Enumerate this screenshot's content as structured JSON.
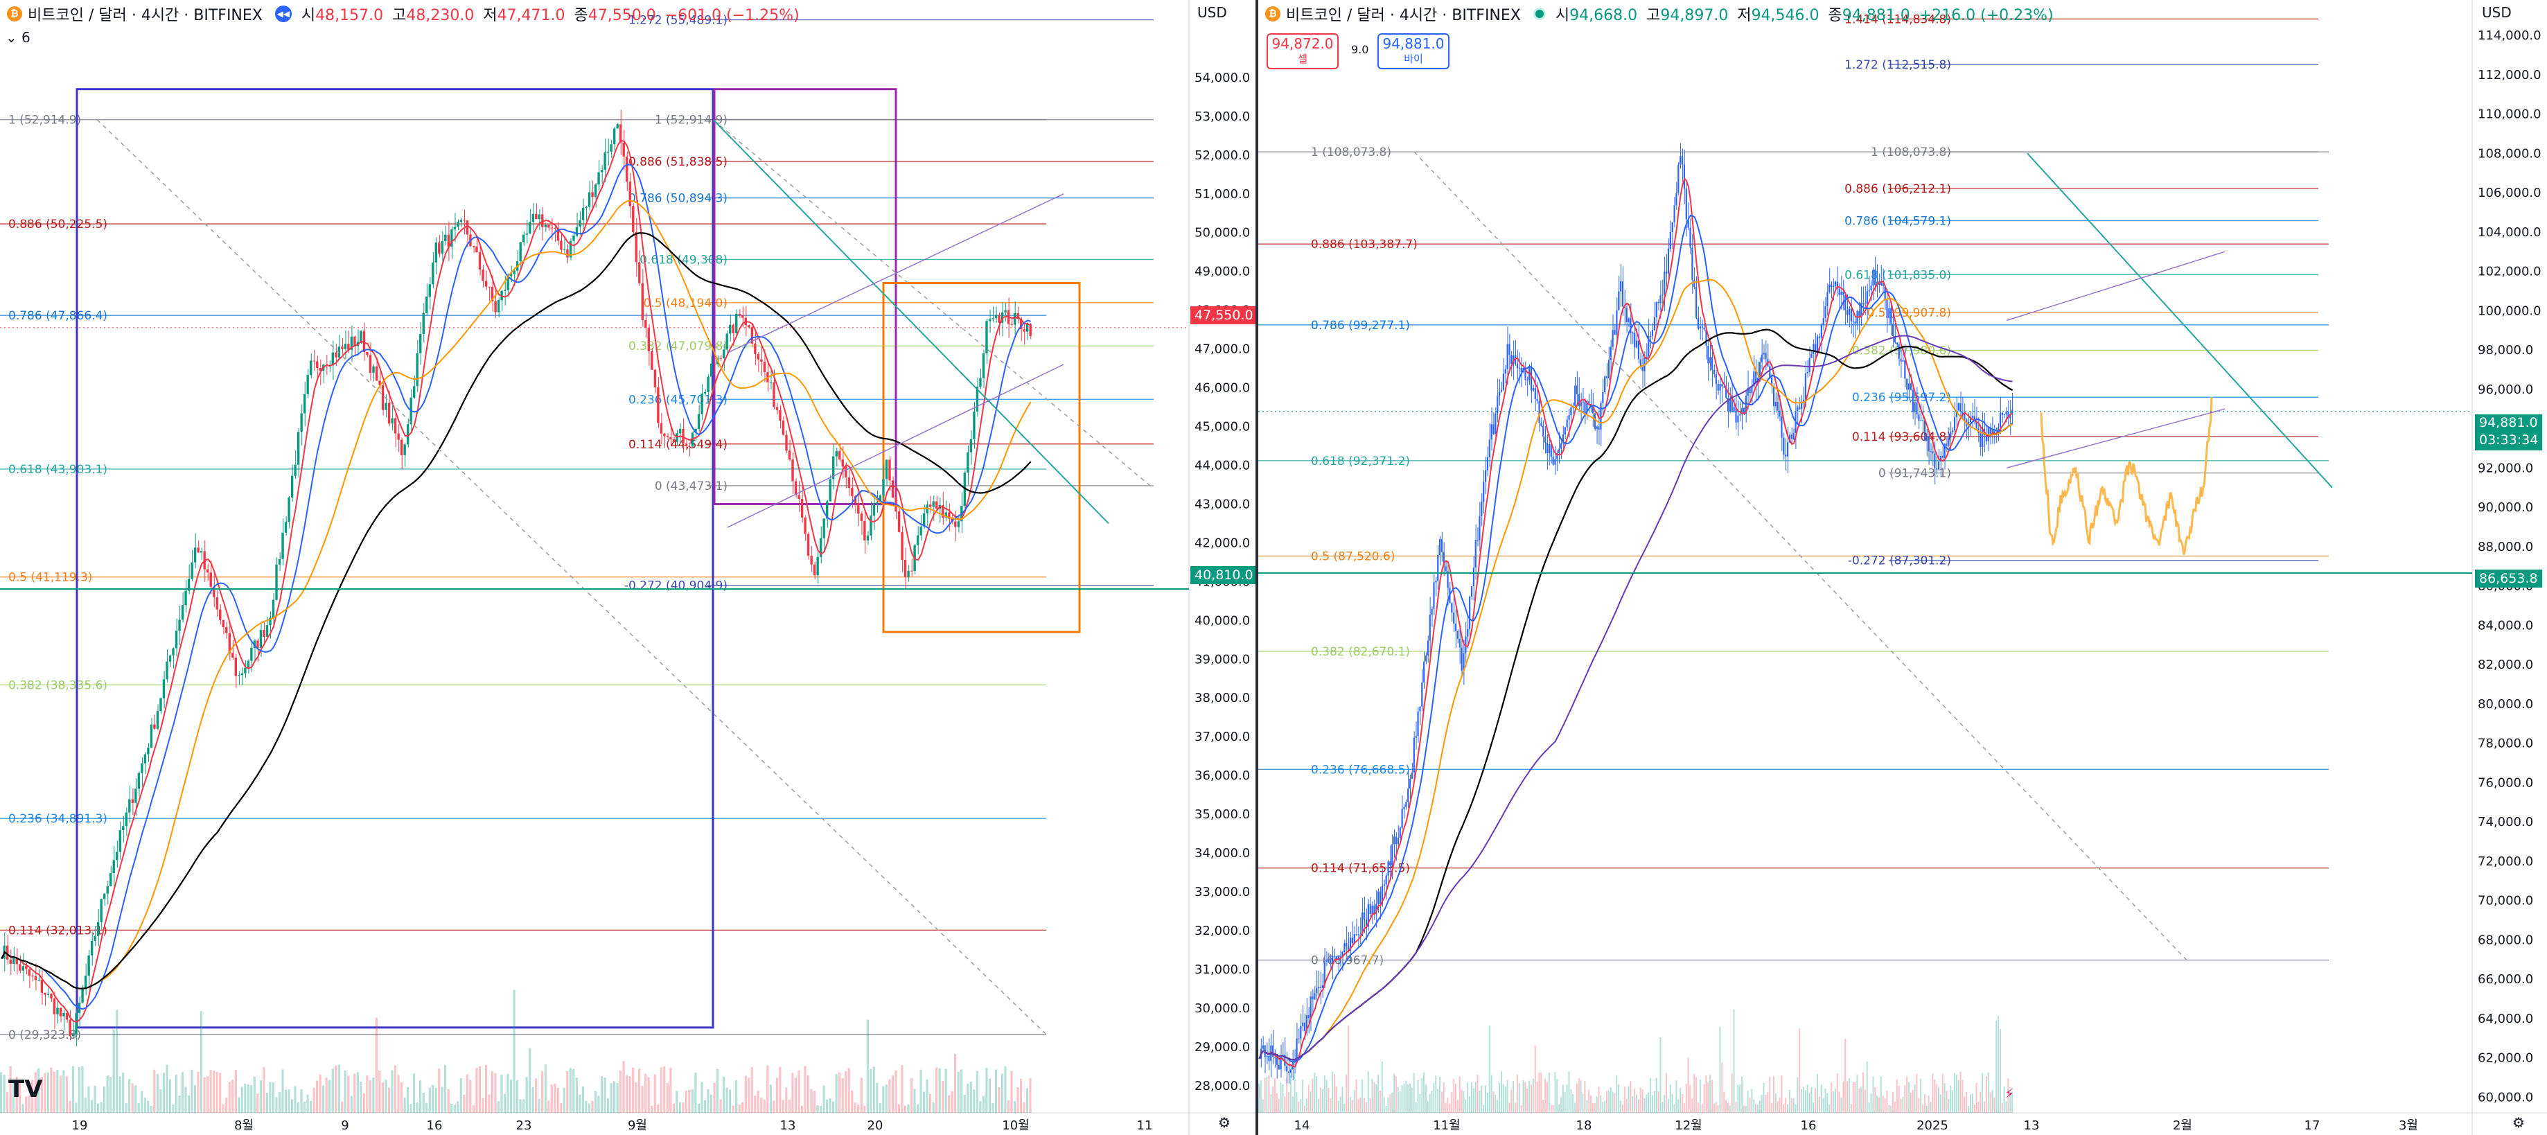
{
  "left": {
    "header": {
      "title": "비트코인 / 달러 · 4시간 · BITFINEX",
      "open_label": "시",
      "open": "48,157.0",
      "high_label": "고",
      "high": "48,230.0",
      "low_label": "저",
      "low": "47,471.0",
      "close_label": "종",
      "close": "47,550.0",
      "change": "−601.0 (−1.25%)"
    },
    "sub_indicator": "6",
    "currency": "USD",
    "last_price": "47,550.0",
    "second_tag": "40,810.0"
  },
  "right": {
    "header": {
      "title": "비트코인 / 달러 · 4시간 · BITFINEX",
      "open_label": "시",
      "open": "94,668.0",
      "high_label": "고",
      "high": "94,897.0",
      "low_label": "저",
      "low": "94,546.0",
      "close_label": "종",
      "close": "94,881.0",
      "change": "+216.0 (+0.23%)"
    },
    "sell_price": "94,872.0",
    "sell_label": "셀",
    "buy_price": "94,881.0",
    "buy_label": "바이",
    "spread": "9.0",
    "currency": "USD",
    "last_price": "94,881.0",
    "countdown": "03:33:34",
    "second_tag": "86,653.8"
  },
  "colors": {
    "up": "#089981",
    "down": "#f23645",
    "ma_red": "#f23645",
    "ma_blue": "#2962ff",
    "ma_orange": "#ff9800",
    "ma_black": "#000000",
    "ma_purple": "#673ab7"
  },
  "chart_data": [
    {
      "type": "candlestick",
      "title": "비트코인 / 달러 · 4시간 · BITFINEX",
      "ylim": [
        27300,
        56000
      ],
      "y_ticks": [
        28000,
        29000,
        30000,
        31000,
        32000,
        33000,
        34000,
        35000,
        36000,
        37000,
        38000,
        39000,
        40000,
        41000,
        42000,
        43000,
        44000,
        45000,
        46000,
        47000,
        48000,
        49000,
        50000,
        51000,
        52000,
        53000,
        54000
      ],
      "x_ticks": [
        "19",
        "8월",
        "9",
        "16",
        "23",
        "9월",
        "13",
        "20",
        "10월",
        "11"
      ],
      "key_prices": [
        {
          "t": 0,
          "p": 31500
        },
        {
          "t": 0.04,
          "p": 30500
        },
        {
          "t": 0.07,
          "p": 29323.8
        },
        {
          "t": 0.1,
          "p": 33000
        },
        {
          "t": 0.15,
          "p": 37500
        },
        {
          "t": 0.19,
          "p": 42000
        },
        {
          "t": 0.23,
          "p": 38500
        },
        {
          "t": 0.26,
          "p": 40000
        },
        {
          "t": 0.3,
          "p": 46500
        },
        {
          "t": 0.35,
          "p": 47300
        },
        {
          "t": 0.37,
          "p": 45700
        },
        {
          "t": 0.39,
          "p": 44300
        },
        {
          "t": 0.42,
          "p": 49500
        },
        {
          "t": 0.45,
          "p": 50200
        },
        {
          "t": 0.48,
          "p": 48000
        },
        {
          "t": 0.52,
          "p": 50500
        },
        {
          "t": 0.55,
          "p": 49500
        },
        {
          "t": 0.58,
          "p": 51500
        },
        {
          "t": 0.6,
          "p": 52914.9
        },
        {
          "t": 0.62,
          "p": 48500
        },
        {
          "t": 0.64,
          "p": 45000
        },
        {
          "t": 0.67,
          "p": 44600
        },
        {
          "t": 0.69,
          "p": 46500
        },
        {
          "t": 0.72,
          "p": 48000
        },
        {
          "t": 0.74,
          "p": 46500
        },
        {
          "t": 0.76,
          "p": 45000
        },
        {
          "t": 0.79,
          "p": 40904.9
        },
        {
          "t": 0.81,
          "p": 44500
        },
        {
          "t": 0.84,
          "p": 42000
        },
        {
          "t": 0.86,
          "p": 44000
        },
        {
          "t": 0.88,
          "p": 41000
        },
        {
          "t": 0.9,
          "p": 43000
        },
        {
          "t": 0.93,
          "p": 42500
        },
        {
          "t": 0.96,
          "p": 48000
        },
        {
          "t": 1,
          "p": 47550
        }
      ],
      "fib_levels": [
        {
          "label": "1 (52,914.9)",
          "price": 52914.9,
          "color": "#787b86"
        },
        {
          "label": "0.886 (50,225.5)",
          "price": 50225.5,
          "color": "#b71c1c"
        },
        {
          "label": "0.786 (47,866.4)",
          "price": 47866.4,
          "color": "#1976d2"
        },
        {
          "label": "0.618 (43,903.1)",
          "price": 43903.1,
          "color": "#26a69a"
        },
        {
          "label": "0.5 (41,119.3)",
          "price": 41119.3,
          "color": "#f57f17"
        },
        {
          "label": "0.382 (38,335.6)",
          "price": 38335.6,
          "color": "#9ccc65"
        },
        {
          "label": "0.236 (34,891.3)",
          "price": 34891.3,
          "color": "#1e88e5"
        },
        {
          "label": "0.114 (32,013.1)",
          "price": 32013.1,
          "color": "#b71c1c"
        },
        {
          "label": "0 (29,323.8)",
          "price": 29323.8,
          "color": "#787b86"
        }
      ],
      "fib_levels_2": [
        {
          "label": "1.272 (55,489.1)",
          "price": 55489.1,
          "color": "#3949ab"
        },
        {
          "label": "1 (52,914.9)",
          "price": 52914.9,
          "color": "#787b86"
        },
        {
          "label": "0.886 (51,838.5)",
          "price": 51838.5,
          "color": "#b71c1c"
        },
        {
          "label": "0.786 (50,894.3)",
          "price": 50894.3,
          "color": "#1976d2"
        },
        {
          "label": "0.618 (49,308)",
          "price": 49308,
          "color": "#26a69a"
        },
        {
          "label": "0.5 (48,194.0)",
          "price": 48194.0,
          "color": "#f57f17"
        },
        {
          "label": "0.382 (47,079.8)",
          "price": 47079.8,
          "color": "#9ccc65"
        },
        {
          "label": "0.236 (45,701.3)",
          "price": 45701.3,
          "color": "#1e88e5"
        },
        {
          "label": "0.114 (44,549.4)",
          "price": 44549.4,
          "color": "#b71c1c"
        },
        {
          "label": "0 (43,473.1)",
          "price": 43473.1,
          "color": "#787b86"
        },
        {
          "label": "-0.272 (40,904.9)",
          "price": 40904.9,
          "color": "#3949ab"
        }
      ]
    },
    {
      "type": "candlestick",
      "title": "비트코인 / 달러 · 4시간 · BITFINEX",
      "ylim": [
        59200,
        115800
      ],
      "y_ticks": [
        60000,
        62000,
        64000,
        66000,
        68000,
        70000,
        72000,
        74000,
        76000,
        78000,
        80000,
        82000,
        84000,
        86000,
        88000,
        90000,
        92000,
        94000,
        96000,
        98000,
        100000,
        102000,
        104000,
        106000,
        108000,
        110000,
        112000,
        114000
      ],
      "x_ticks": [
        "14",
        "11월",
        "18",
        "12월",
        "16",
        "2025",
        "13",
        "2월",
        "17",
        "3월"
      ],
      "key_prices": [
        {
          "t": 0,
          "p": 62500
        },
        {
          "t": 0.04,
          "p": 61500
        },
        {
          "t": 0.08,
          "p": 66000
        },
        {
          "t": 0.12,
          "p": 68000
        },
        {
          "t": 0.16,
          "p": 70000
        },
        {
          "t": 0.2,
          "p": 76000
        },
        {
          "t": 0.24,
          "p": 88000
        },
        {
          "t": 0.27,
          "p": 82000
        },
        {
          "t": 0.3,
          "p": 92000
        },
        {
          "t": 0.33,
          "p": 98000
        },
        {
          "t": 0.36,
          "p": 96500
        },
        {
          "t": 0.39,
          "p": 92000
        },
        {
          "t": 0.42,
          "p": 96000
        },
        {
          "t": 0.45,
          "p": 94000
        },
        {
          "t": 0.48,
          "p": 101000
        },
        {
          "t": 0.51,
          "p": 97000
        },
        {
          "t": 0.54,
          "p": 102000
        },
        {
          "t": 0.56,
          "p": 108073.8
        },
        {
          "t": 0.58,
          "p": 100000
        },
        {
          "t": 0.61,
          "p": 96000
        },
        {
          "t": 0.64,
          "p": 94500
        },
        {
          "t": 0.67,
          "p": 98000
        },
        {
          "t": 0.7,
          "p": 92500
        },
        {
          "t": 0.73,
          "p": 97000
        },
        {
          "t": 0.76,
          "p": 101500
        },
        {
          "t": 0.79,
          "p": 99500
        },
        {
          "t": 0.82,
          "p": 102000
        },
        {
          "t": 0.85,
          "p": 98000
        },
        {
          "t": 0.87,
          "p": 95000
        },
        {
          "t": 0.9,
          "p": 92000
        },
        {
          "t": 0.93,
          "p": 95000
        },
        {
          "t": 0.96,
          "p": 93500
        },
        {
          "t": 1,
          "p": 94881
        }
      ],
      "projection_path": [
        {
          "t": 0,
          "p": 94500
        },
        {
          "t": 0.06,
          "p": 88000
        },
        {
          "t": 0.12,
          "p": 90500
        },
        {
          "t": 0.2,
          "p": 92000
        },
        {
          "t": 0.28,
          "p": 88500
        },
        {
          "t": 0.36,
          "p": 91000
        },
        {
          "t": 0.44,
          "p": 89000
        },
        {
          "t": 0.52,
          "p": 92500
        },
        {
          "t": 0.6,
          "p": 90000
        },
        {
          "t": 0.68,
          "p": 88000
        },
        {
          "t": 0.76,
          "p": 90500
        },
        {
          "t": 0.84,
          "p": 87500
        },
        {
          "t": 0.9,
          "p": 90000
        },
        {
          "t": 0.95,
          "p": 91000
        },
        {
          "t": 1,
          "p": 95200
        }
      ],
      "fib_levels": [
        {
          "label": "0.886 (103,387.7)",
          "price": 103387.7,
          "color": "#b71c1c"
        },
        {
          "label": "0.786 (99,277.1)",
          "price": 99277.1,
          "color": "#1976d2"
        },
        {
          "label": "0.618 (92,371.2)",
          "price": 92371.2,
          "color": "#26a69a"
        },
        {
          "label": "0.5 (87,520.6)",
          "price": 87520.6,
          "color": "#f57f17"
        },
        {
          "label": "0.382 (82,670.1)",
          "price": 82670.1,
          "color": "#9ccc65"
        },
        {
          "label": "0.236 (76,668.5)",
          "price": 76668.5,
          "color": "#1e88e5"
        },
        {
          "label": "0.114 (71,653.5)",
          "price": 71653.5,
          "color": "#b71c1c"
        },
        {
          "label": "0 (66,967.7)",
          "price": 66967.7,
          "color": "#787b86"
        },
        {
          "label": "1 (108,073.8)",
          "price": 108073.8,
          "color": "#787b86"
        }
      ],
      "fib_levels_2": [
        {
          "label": "1.414 (114,834.8)",
          "price": 114834.8,
          "color": "#b71c1c"
        },
        {
          "label": "1.272 (112,515.8)",
          "price": 112515.8,
          "color": "#3949ab"
        },
        {
          "label": "1 (108,073.8)",
          "price": 108073.8,
          "color": "#787b86"
        },
        {
          "label": "0.886 (106,212.1)",
          "price": 106212.1,
          "color": "#b71c1c"
        },
        {
          "label": "0.786 (104,579.1)",
          "price": 104579.1,
          "color": "#1976d2"
        },
        {
          "label": "0.618 (101,835.0)",
          "price": 101835.0,
          "color": "#26a69a"
        },
        {
          "label": "0.5 (99,907.8)",
          "price": 99907.8,
          "color": "#f57f17"
        },
        {
          "label": "0.382 (97,980.6)",
          "price": 97980.6,
          "color": "#9ccc65"
        },
        {
          "label": "0.236 (95,597.2)",
          "price": 95597.2,
          "color": "#1e88e5"
        },
        {
          "label": "0.114 (93,604.8)",
          "price": 93604.8,
          "color": "#b71c1c"
        },
        {
          "label": "0 (91,743.1)",
          "price": 91743.1,
          "color": "#787b86"
        },
        {
          "label": "-0.272 (87,301.2)",
          "price": 87301.2,
          "color": "#3949ab"
        }
      ]
    }
  ]
}
